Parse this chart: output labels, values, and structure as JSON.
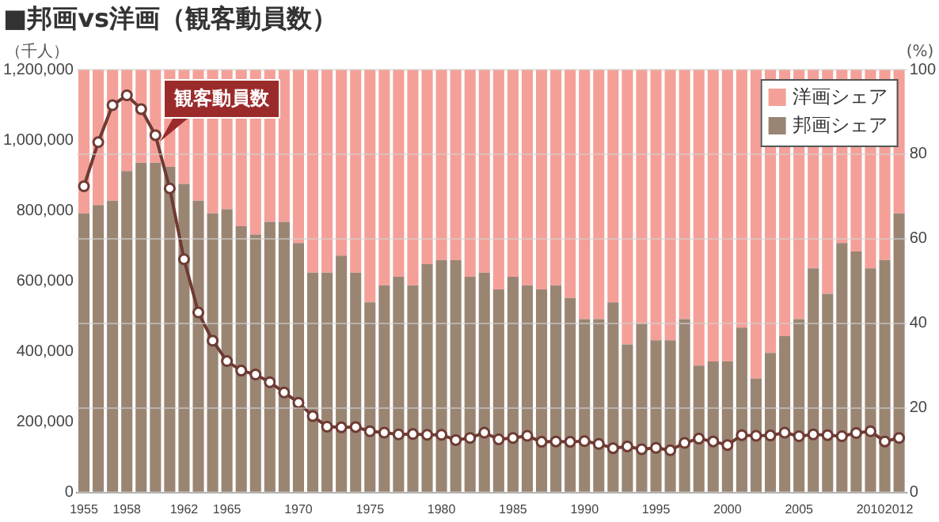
{
  "chart_data": {
    "type": "bar",
    "stacked": true,
    "title": "■邦画vs洋画（観客動員数）",
    "ylabel": "（千人）",
    "y2label": "(%)",
    "categories": [
      "1955",
      null,
      null,
      "1958",
      null,
      null,
      null,
      "1962",
      null,
      null,
      "1965",
      null,
      null,
      null,
      null,
      "1970",
      null,
      null,
      null,
      null,
      "1975",
      null,
      null,
      null,
      null,
      "1980",
      null,
      null,
      null,
      null,
      "1985",
      null,
      null,
      null,
      null,
      "1990",
      null,
      null,
      null,
      null,
      "1995",
      null,
      null,
      null,
      null,
      "2000",
      null,
      null,
      null,
      null,
      "2005",
      null,
      null,
      null,
      null,
      "2010",
      null,
      "2012"
    ],
    "series": [
      {
        "name": "邦画シェア",
        "color": "#9a8573",
        "axis": "y2",
        "values": [
          66,
          68,
          69,
          76,
          78,
          78,
          77,
          73,
          69,
          66,
          67,
          63,
          61,
          64,
          64,
          59,
          52,
          52,
          56,
          52,
          45,
          49,
          51,
          49,
          54,
          55,
          55,
          51,
          52,
          48,
          51,
          49,
          48,
          49,
          46,
          41,
          41,
          45,
          35,
          40,
          36,
          36,
          41,
          30,
          31,
          31,
          39,
          27,
          33,
          37,
          41,
          53,
          47,
          59,
          57,
          53,
          55,
          66
        ]
      },
      {
        "name": "洋画シェア",
        "color": "#f4a098",
        "axis": "y2",
        "values": [
          34,
          32,
          31,
          24,
          22,
          22,
          23,
          27,
          31,
          34,
          33,
          37,
          39,
          36,
          36,
          41,
          48,
          48,
          44,
          48,
          55,
          51,
          49,
          51,
          46,
          45,
          45,
          49,
          48,
          52,
          49,
          51,
          52,
          51,
          54,
          59,
          59,
          55,
          65,
          60,
          64,
          64,
          59,
          70,
          69,
          69,
          61,
          73,
          67,
          63,
          59,
          47,
          53,
          41,
          43,
          47,
          45,
          34
        ]
      },
      {
        "name": "観客動員数",
        "type": "line",
        "color": "#6e3b33",
        "axis": "y",
        "values": [
          869000,
          994000,
          1099000,
          1127000,
          1088000,
          1014000,
          863000,
          662000,
          511000,
          431000,
          373000,
          346000,
          335000,
          313000,
          284000,
          255000,
          217000,
          187000,
          185000,
          186000,
          174000,
          170000,
          165000,
          166000,
          164000,
          164000,
          149000,
          155000,
          170000,
          151000,
          155000,
          161000,
          144000,
          145000,
          144000,
          146000,
          138000,
          126000,
          131000,
          123000,
          127000,
          120000,
          141000,
          153000,
          145000,
          135000,
          163000,
          161000,
          162000,
          170000,
          160000,
          165000,
          163000,
          160000,
          169000,
          174000,
          145000,
          155000
        ]
      }
    ],
    "ylim": [
      0,
      1200000
    ],
    "yticks": [
      0,
      {
        "value": 200000,
        "label": "200,000"
      },
      {
        "value": 400000,
        "label": "400,000"
      },
      {
        "value": 600000,
        "label": "600,000"
      },
      {
        "value": 800000,
        "label": "800,000"
      },
      {
        "value": 1000000,
        "label": "1,000,000"
      },
      {
        "value": 1200000,
        "label": "1,200,000"
      }
    ],
    "y2lim": [
      0,
      100
    ],
    "y2ticks": [
      0,
      20,
      40,
      60,
      80,
      100
    ],
    "grid": "y2",
    "legend": "top right",
    "marker": "circle"
  }
}
